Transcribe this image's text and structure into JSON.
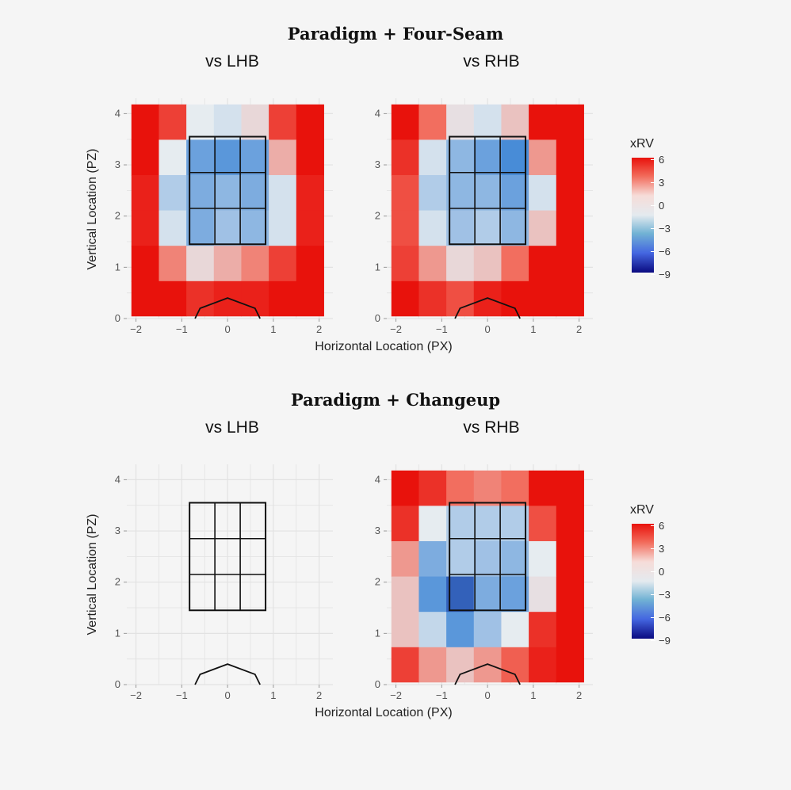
{
  "chart_data": [
    {
      "type": "heatmap",
      "title": "Paradigm + Four-Seam",
      "subtitle": "vs LHB",
      "xlabel": "Horizontal Location (PX)",
      "ylabel": "Vertical Location (PZ)",
      "xlim": [
        -2.2,
        2.3
      ],
      "ylim": [
        0,
        4.3
      ],
      "xticks": [
        "−2",
        "−1",
        "0",
        "1",
        "2"
      ],
      "yticks": [
        "0",
        "1",
        "2",
        "3",
        "4"
      ],
      "x_bins": [
        -2.1,
        -1.5,
        -0.9,
        -0.3,
        0.3,
        0.9,
        1.5,
        2.1
      ],
      "y_bins": [
        0.05,
        0.73,
        1.42,
        2.11,
        2.8,
        3.49,
        4.18
      ],
      "values_top_to_bottom": [
        [
          6,
          4.5,
          0,
          -0.5,
          0.5,
          4.5,
          6
        ],
        [
          6,
          0,
          -3.5,
          -4,
          -3.5,
          1.5,
          6
        ],
        [
          5.5,
          -1.5,
          -3,
          -2.5,
          -3,
          -0.5,
          5.5
        ],
        [
          5.5,
          -0.5,
          -3,
          -2,
          -2.5,
          -0.5,
          5.5
        ],
        [
          6,
          2.5,
          0.5,
          1.5,
          2.5,
          4.5,
          6
        ],
        [
          6,
          6,
          5,
          5.5,
          5.5,
          6,
          6
        ]
      ],
      "grid": true,
      "legend": "none"
    },
    {
      "type": "heatmap",
      "title": "Paradigm + Four-Seam",
      "subtitle": "vs RHB",
      "xlabel": "Horizontal Location (PX)",
      "ylabel": "",
      "xlim": [
        -2.2,
        2.3
      ],
      "ylim": [
        0,
        4.3
      ],
      "xticks": [
        "−2",
        "−1",
        "0",
        "1",
        "2"
      ],
      "yticks": [
        "0",
        "1",
        "2",
        "3",
        "4"
      ],
      "x_bins": [
        -2.1,
        -1.5,
        -0.9,
        -0.3,
        0.3,
        0.9,
        1.5,
        2.1
      ],
      "y_bins": [
        0.05,
        0.73,
        1.42,
        2.11,
        2.8,
        3.49,
        4.18
      ],
      "values_top_to_bottom": [
        [
          6,
          3,
          0.3,
          -0.5,
          1,
          6,
          6
        ],
        [
          5,
          -0.5,
          -2.5,
          -3.5,
          -4.5,
          2,
          6
        ],
        [
          4,
          -1.5,
          -2.5,
          -2.5,
          -3.5,
          -0.5,
          6
        ],
        [
          4,
          -0.5,
          -2,
          -1.5,
          -2.5,
          1,
          6
        ],
        [
          4.5,
          2,
          0.5,
          1,
          3,
          6,
          6
        ],
        [
          6,
          5,
          4,
          5.5,
          6,
          6,
          6
        ]
      ],
      "grid": true,
      "legend": "right",
      "legend_title": "xRV",
      "legend_ticks": [
        "6",
        "3",
        "0",
        "−3",
        "−6",
        "−9"
      ]
    },
    {
      "type": "heatmap",
      "title": "Paradigm + Changeup",
      "subtitle": "vs LHB",
      "xlabel": "Horizontal Location (PX)",
      "ylabel": "Vertical Location (PZ)",
      "xlim": [
        -2.2,
        2.3
      ],
      "ylim": [
        0,
        4.3
      ],
      "xticks": [
        "−2",
        "−1",
        "0",
        "1",
        "2"
      ],
      "yticks": [
        "0",
        "1",
        "2",
        "3",
        "4"
      ],
      "values_top_to_bottom": [],
      "grid": true,
      "legend": "none"
    },
    {
      "type": "heatmap",
      "title": "Paradigm + Changeup",
      "subtitle": "vs RHB",
      "xlabel": "Horizontal Location (PX)",
      "ylabel": "",
      "xlim": [
        -2.2,
        2.3
      ],
      "ylim": [
        0,
        4.3
      ],
      "xticks": [
        "−2",
        "−1",
        "0",
        "1",
        "2"
      ],
      "yticks": [
        "0",
        "1",
        "2",
        "3",
        "4"
      ],
      "x_bins": [
        -2.1,
        -1.5,
        -0.9,
        -0.3,
        0.3,
        0.9,
        1.5,
        2.1
      ],
      "y_bins": [
        0.05,
        0.73,
        1.42,
        2.11,
        2.8,
        3.49,
        4.18
      ],
      "values_top_to_bottom": [
        [
          6,
          5,
          3,
          2.5,
          3,
          6,
          6
        ],
        [
          5,
          0,
          -1.5,
          -1.5,
          -1.5,
          4,
          6
        ],
        [
          2,
          -3,
          -1.5,
          -2,
          -2.5,
          0,
          6
        ],
        [
          1,
          -4,
          -6,
          -3,
          -3.5,
          0.3,
          6
        ],
        [
          1,
          -1,
          -4,
          -2,
          0,
          5,
          6
        ],
        [
          4.5,
          2,
          1,
          2,
          3.5,
          5.5,
          6
        ]
      ],
      "grid": true,
      "legend": "right",
      "legend_title": "xRV",
      "legend_ticks": [
        "6",
        "3",
        "0",
        "−3",
        "−6",
        "−9"
      ]
    }
  ],
  "strike_zone": {
    "x": [
      -0.83,
      0.83
    ],
    "z": [
      1.45,
      3.55
    ]
  },
  "home_plate": [
    [
      -0.71,
      0
    ],
    [
      -0.6,
      0.2
    ],
    [
      0,
      0.4
    ],
    [
      0.6,
      0.2
    ],
    [
      0.71,
      0
    ]
  ],
  "color_scale": {
    "min": -9,
    "mid": 0,
    "max": 6,
    "low": "#0a0a80",
    "mid_color": "#e6ecf0",
    "high": "#e8120c"
  }
}
